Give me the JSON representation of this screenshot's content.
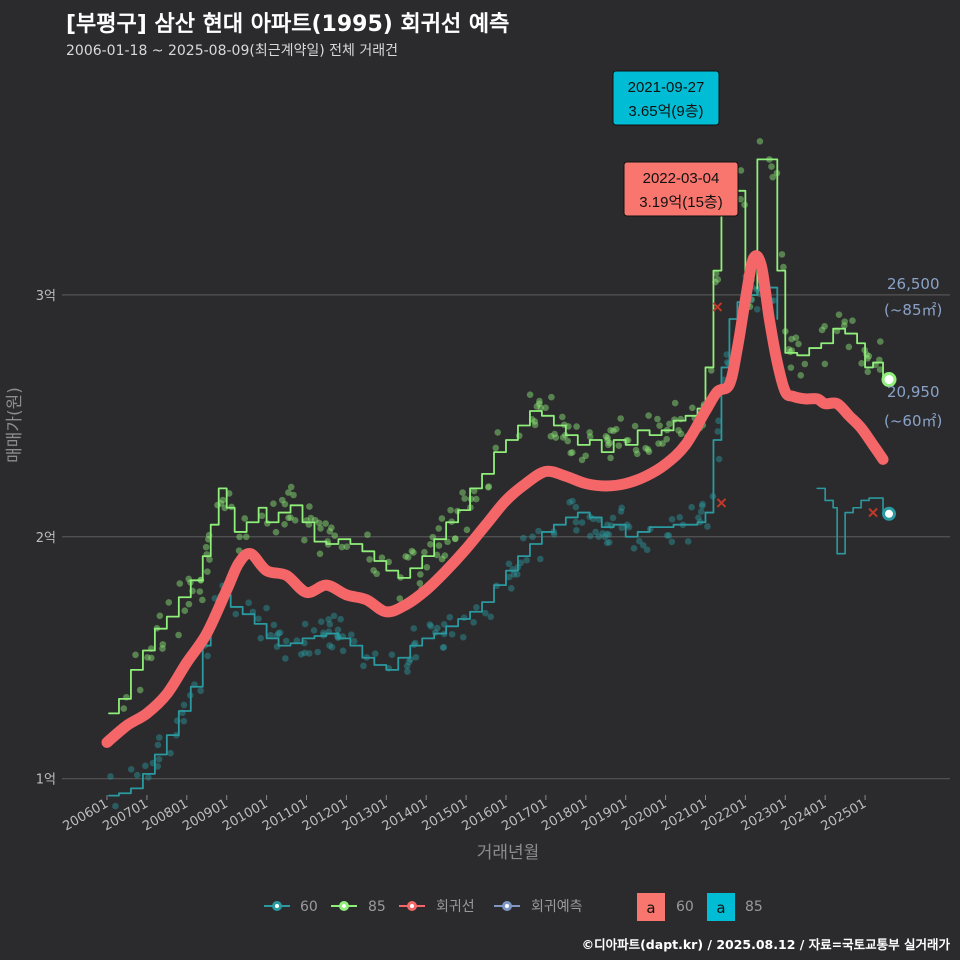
{
  "title": "[부평구] 삼산 현대 아파트(1995) 회귀선 예측",
  "subtitle": "2006-01-18 ~ 2025-08-09(최근계약일) 전체 거래건",
  "footer": "©디아파트(dapt.kr) / 2025.08.12 / 자료=국토교통부 실거래가",
  "colors": {
    "background": "#2b2b2d",
    "s60": "#2a9aa0",
    "s85": "#90ee7a",
    "regression": "#f46668",
    "prediction": "#7f96c4",
    "grid": "#555555"
  },
  "callouts": {
    "c85": {
      "date": "2021-09-27",
      "value": "3.65억(9층)",
      "color": "#00bcd4"
    },
    "creg": {
      "date": "2022-03-04",
      "value": "3.19억(15층)",
      "color": "#f8766d"
    }
  },
  "end_labels": {
    "s85": {
      "value": "26,500",
      "area": "(~85㎡)"
    },
    "s60": {
      "value": "20,950",
      "area": "(~60㎡)"
    }
  },
  "legend": {
    "items": [
      {
        "label": "60",
        "color": "#2a9aa0"
      },
      {
        "label": "85",
        "color": "#90ee7a"
      },
      {
        "label": "회귀선",
        "color": "#f46668"
      },
      {
        "label": "회귀예측",
        "color": "#7f96c4"
      }
    ],
    "boxes": [
      {
        "glyph": "a",
        "label": "60",
        "color": "#f8766d"
      },
      {
        "glyph": "a",
        "label": "85",
        "color": "#00bcd4"
      }
    ]
  },
  "chart_data": {
    "type": "line",
    "xlabel": "거래년월",
    "ylabel": "매매가(원)",
    "xlim": [
      2006.0,
      2025.75
    ],
    "ylim": [
      0.85,
      3.95
    ],
    "y_ticks": [
      {
        "v": 1,
        "label": "1억"
      },
      {
        "v": 2,
        "label": "2억"
      },
      {
        "v": 3,
        "label": "3억"
      }
    ],
    "x_ticks": [
      {
        "v": 2006.0,
        "label": "200601"
      },
      {
        "v": 2007.0,
        "label": "200701"
      },
      {
        "v": 2008.0,
        "label": "200801"
      },
      {
        "v": 2009.0,
        "label": "200901"
      },
      {
        "v": 2010.0,
        "label": "201001"
      },
      {
        "v": 2011.0,
        "label": "201101"
      },
      {
        "v": 2012.0,
        "label": "201201"
      },
      {
        "v": 2013.0,
        "label": "201301"
      },
      {
        "v": 2014.0,
        "label": "201401"
      },
      {
        "v": 2015.0,
        "label": "201501"
      },
      {
        "v": 2016.0,
        "label": "201601"
      },
      {
        "v": 2017.0,
        "label": "201701"
      },
      {
        "v": 2018.0,
        "label": "201801"
      },
      {
        "v": 2019.0,
        "label": "201901"
      },
      {
        "v": 2020.0,
        "label": "202001"
      },
      {
        "v": 2021.0,
        "label": "202101"
      },
      {
        "v": 2022.0,
        "label": "202201"
      },
      {
        "v": 2023.0,
        "label": "202301"
      },
      {
        "v": 2024.0,
        "label": "202401"
      },
      {
        "v": 2025.0,
        "label": "202501"
      }
    ],
    "series": [
      {
        "name": "85",
        "kind": "step",
        "x": [
          2006.05,
          2006.3,
          2006.6,
          2006.9,
          2007.2,
          2007.5,
          2007.8,
          2008.1,
          2008.4,
          2008.6,
          2008.8,
          2009.0,
          2009.2,
          2009.5,
          2009.8,
          2010.0,
          2010.3,
          2010.6,
          2010.9,
          2011.2,
          2011.5,
          2011.8,
          2012.1,
          2012.4,
          2012.7,
          2013.0,
          2013.3,
          2013.6,
          2013.9,
          2014.2,
          2014.5,
          2014.8,
          2015.1,
          2015.4,
          2015.7,
          2016.0,
          2016.3,
          2016.6,
          2016.9,
          2017.2,
          2017.5,
          2017.8,
          2018.1,
          2018.4,
          2018.7,
          2019.0,
          2019.3,
          2019.6,
          2019.9,
          2020.2,
          2020.5,
          2020.8,
          2021.0,
          2021.2,
          2021.4,
          2021.6,
          2021.8,
          2022.0,
          2022.3,
          2022.6,
          2022.8,
          2023.0,
          2023.3,
          2023.6,
          2023.9,
          2024.2,
          2024.5,
          2024.8,
          2025.0,
          2025.2,
          2025.45
        ],
        "y": [
          1.27,
          1.33,
          1.45,
          1.53,
          1.62,
          1.67,
          1.75,
          1.82,
          1.92,
          2.05,
          2.2,
          2.12,
          2.02,
          2.06,
          2.12,
          2.06,
          2.1,
          2.13,
          2.06,
          1.98,
          1.97,
          1.99,
          1.97,
          1.94,
          1.9,
          1.86,
          1.83,
          1.87,
          1.92,
          1.99,
          2.06,
          2.11,
          2.2,
          2.26,
          2.35,
          2.4,
          2.46,
          2.52,
          2.5,
          2.46,
          2.42,
          2.38,
          2.4,
          2.35,
          2.4,
          2.38,
          2.44,
          2.42,
          2.44,
          2.48,
          2.5,
          2.53,
          2.7,
          3.1,
          3.36,
          3.43,
          3.43,
          3.0,
          3.56,
          3.56,
          3.1,
          2.76,
          2.75,
          2.78,
          2.8,
          2.86,
          2.84,
          2.8,
          2.7,
          2.72,
          2.66
        ]
      },
      {
        "name": "60",
        "kind": "step",
        "x": [
          2006.05,
          2006.3,
          2006.6,
          2006.9,
          2007.2,
          2007.5,
          2007.8,
          2008.1,
          2008.4,
          2008.6,
          2008.8,
          2009.1,
          2009.4,
          2009.7,
          2010.0,
          2010.3,
          2010.6,
          2010.9,
          2011.2,
          2011.5,
          2011.8,
          2012.1,
          2012.4,
          2012.7,
          2013.0,
          2013.3,
          2013.6,
          2013.9,
          2014.2,
          2014.5,
          2014.8,
          2015.1,
          2015.4,
          2015.7,
          2016.0,
          2016.3,
          2016.6,
          2016.9,
          2017.2,
          2017.5,
          2017.8,
          2018.1,
          2018.4,
          2018.7,
          2019.0,
          2019.3,
          2019.6,
          2019.9,
          2020.2,
          2020.5,
          2020.8,
          2021.0,
          2021.2,
          2021.4,
          2021.6,
          2021.8,
          2022.0,
          2022.3,
          2022.6,
          2022.8
        ],
        "y": [
          0.93,
          0.94,
          0.96,
          1.02,
          1.1,
          1.18,
          1.28,
          1.38,
          1.55,
          1.68,
          1.76,
          1.71,
          1.68,
          1.64,
          1.58,
          1.55,
          1.56,
          1.58,
          1.59,
          1.6,
          1.58,
          1.55,
          1.5,
          1.47,
          1.45,
          1.5,
          1.55,
          1.58,
          1.6,
          1.63,
          1.66,
          1.69,
          1.73,
          1.8,
          1.86,
          1.92,
          1.97,
          2.02,
          2.05,
          2.08,
          2.1,
          2.08,
          2.04,
          2.05,
          2.0,
          2.02,
          2.04,
          2.04,
          2.05,
          2.05,
          2.06,
          2.1,
          2.4,
          2.7,
          2.9,
          2.97,
          3.0,
          3.02,
          3.03,
          2.9
        ]
      },
      {
        "name": "회귀예측",
        "kind": "step",
        "x": [
          2023.8,
          2024.0,
          2024.2,
          2024.3,
          2024.5,
          2024.7,
          2024.9,
          2025.1,
          2025.45
        ],
        "y": [
          2.2,
          2.15,
          2.12,
          1.93,
          2.1,
          2.12,
          2.15,
          2.16,
          2.1
        ]
      },
      {
        "name": "회귀선",
        "kind": "smooth",
        "x": [
          2006.0,
          2006.5,
          2007.0,
          2007.5,
          2008.0,
          2008.5,
          2009.0,
          2009.3,
          2009.6,
          2010.0,
          2010.5,
          2011.0,
          2011.5,
          2012.0,
          2012.5,
          2013.0,
          2013.5,
          2014.0,
          2014.5,
          2015.0,
          2015.5,
          2016.0,
          2016.5,
          2017.0,
          2017.5,
          2018.0,
          2018.5,
          2019.0,
          2019.5,
          2020.0,
          2020.5,
          2021.0,
          2021.3,
          2021.6,
          2021.8,
          2022.0,
          2022.2,
          2022.4,
          2022.6,
          2022.8,
          2023.0,
          2023.2,
          2023.5,
          2023.8,
          2024.0,
          2024.3,
          2024.6,
          2024.9,
          2025.2,
          2025.45
        ],
        "y": [
          1.15,
          1.22,
          1.27,
          1.35,
          1.48,
          1.6,
          1.78,
          1.89,
          1.93,
          1.86,
          1.84,
          1.77,
          1.8,
          1.76,
          1.74,
          1.69,
          1.72,
          1.78,
          1.86,
          1.95,
          2.05,
          2.15,
          2.22,
          2.27,
          2.25,
          2.22,
          2.21,
          2.22,
          2.25,
          2.3,
          2.38,
          2.52,
          2.6,
          2.63,
          2.78,
          2.98,
          3.15,
          3.12,
          2.9,
          2.72,
          2.6,
          2.58,
          2.57,
          2.57,
          2.55,
          2.55,
          2.5,
          2.45,
          2.38,
          2.32
        ]
      }
    ],
    "annotations": [
      {
        "text": "2021-09-27 3.65억(9층)",
        "x": 2021.74,
        "y": 3.65,
        "series": "85"
      },
      {
        "text": "2022-03-04 3.19억(15층)",
        "x": 2022.17,
        "y": 3.19,
        "series": "회귀선"
      },
      {
        "text": "26,500 (~85㎡)",
        "x": 2025.6,
        "y": 2.65
      },
      {
        "text": "20,950 (~60㎡)",
        "x": 2025.6,
        "y": 2.095
      }
    ]
  }
}
